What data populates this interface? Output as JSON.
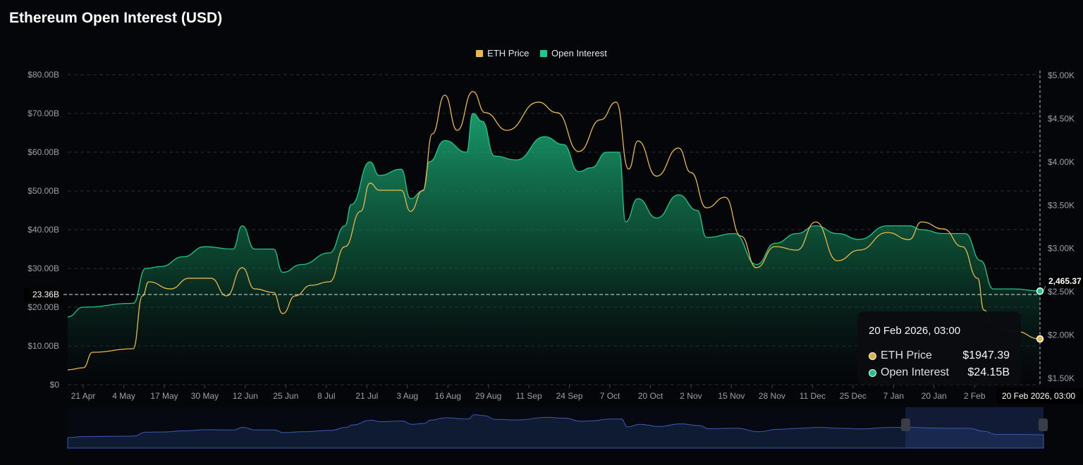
{
  "title": "Ethereum Open Interest (USD)",
  "colors": {
    "eth_price": "#e8b84a",
    "open_interest": "#1fc98a",
    "navigator": "#3b5bb0"
  },
  "tooltip": {
    "date": "20 Feb 2026, 03:00",
    "rows": [
      {
        "label": "ETH Price",
        "value": "$1947.39"
      },
      {
        "label": "Open Interest",
        "value": "$24.15B"
      }
    ]
  },
  "crosshair": {
    "left_label": "23.36B",
    "right_label": "2,465.37",
    "x_label": "20 Feb 2026, 03:00"
  },
  "chart_data": {
    "type": "area",
    "title": "Ethereum Open Interest (USD)",
    "legend": [
      "ETH Price",
      "Open Interest"
    ],
    "legend_position": "top-center",
    "x_unit": "days since 16 Apr 2025",
    "x_range": [
      0,
      312
    ],
    "x_ticks": [
      {
        "day": 5,
        "label": "21 Apr"
      },
      {
        "day": 18,
        "label": "4 May"
      },
      {
        "day": 31,
        "label": "17 May"
      },
      {
        "day": 44,
        "label": "30 May"
      },
      {
        "day": 57,
        "label": "12 Jun"
      },
      {
        "day": 70,
        "label": "25 Jun"
      },
      {
        "day": 83,
        "label": "8 Jul"
      },
      {
        "day": 96,
        "label": "21 Jul"
      },
      {
        "day": 109,
        "label": "3 Aug"
      },
      {
        "day": 122,
        "label": "16 Aug"
      },
      {
        "day": 135,
        "label": "29 Aug"
      },
      {
        "day": 148,
        "label": "11 Sep"
      },
      {
        "day": 161,
        "label": "24 Sep"
      },
      {
        "day": 174,
        "label": "7 Oct"
      },
      {
        "day": 187,
        "label": "20 Oct"
      },
      {
        "day": 200,
        "label": "2 Nov"
      },
      {
        "day": 213,
        "label": "15 Nov"
      },
      {
        "day": 226,
        "label": "28 Nov"
      },
      {
        "day": 239,
        "label": "11 Dec"
      },
      {
        "day": 252,
        "label": "25 Dec"
      },
      {
        "day": 265,
        "label": "7 Jan"
      },
      {
        "day": 278,
        "label": "20 Jan"
      },
      {
        "day": 291,
        "label": "2 Feb"
      }
    ],
    "y_left": {
      "label": "Open Interest",
      "range": [
        0,
        80
      ],
      "ticks": [
        "$0",
        "$10.00B",
        "$20.00B",
        "$30.00B",
        "$40.00B",
        "$50.00B",
        "$60.00B",
        "$70.00B",
        "$80.00B"
      ]
    },
    "y_right": {
      "label": "ETH Price",
      "range": [
        1500,
        5000
      ],
      "ticks": [
        "$1.50K",
        "$2.00K",
        "$2.50K",
        "$3.00K",
        "$3.50K",
        "$4.00K",
        "$4.50K",
        "$5.00K"
      ]
    },
    "series": [
      {
        "name": "Open Interest",
        "axis": "left",
        "unit": "B USD",
        "points": [
          [
            0,
            17.5
          ],
          [
            5,
            20
          ],
          [
            21,
            21
          ],
          [
            25,
            30
          ],
          [
            30,
            30.5
          ],
          [
            37,
            33
          ],
          [
            44,
            35.6
          ],
          [
            53,
            35
          ],
          [
            56,
            41
          ],
          [
            60,
            35
          ],
          [
            66,
            35
          ],
          [
            69,
            29
          ],
          [
            75,
            31
          ],
          [
            84,
            34
          ],
          [
            89,
            41
          ],
          [
            91,
            46.5
          ],
          [
            97,
            57.5
          ],
          [
            100,
            54
          ],
          [
            107,
            55.6
          ],
          [
            110,
            48
          ],
          [
            114,
            50
          ],
          [
            116,
            57.5
          ],
          [
            121,
            63
          ],
          [
            128,
            60
          ],
          [
            130,
            70
          ],
          [
            133,
            68
          ],
          [
            137,
            59
          ],
          [
            144,
            58
          ],
          [
            153,
            64
          ],
          [
            159,
            62
          ],
          [
            164,
            55
          ],
          [
            168,
            56
          ],
          [
            173,
            60
          ],
          [
            177,
            60
          ],
          [
            179,
            42
          ],
          [
            183,
            48
          ],
          [
            189,
            43
          ],
          [
            196,
            49
          ],
          [
            202,
            45
          ],
          [
            205,
            38
          ],
          [
            214,
            39
          ],
          [
            221,
            31
          ],
          [
            227,
            36.5
          ],
          [
            234,
            39
          ],
          [
            240,
            41
          ],
          [
            247,
            39
          ],
          [
            254,
            37.5
          ],
          [
            263,
            41
          ],
          [
            270,
            41
          ],
          [
            274,
            40
          ],
          [
            281,
            39
          ],
          [
            288,
            39
          ],
          [
            293,
            32
          ],
          [
            297,
            24.7
          ],
          [
            304,
            24.7
          ],
          [
            312,
            24.15
          ]
        ]
      },
      {
        "name": "ETH Price",
        "axis": "right",
        "unit": "USD",
        "points": [
          [
            0,
            1590
          ],
          [
            5,
            1614
          ],
          [
            8,
            1793
          ],
          [
            21,
            1834
          ],
          [
            24,
            2444
          ],
          [
            26,
            2607
          ],
          [
            33,
            2525
          ],
          [
            39,
            2648
          ],
          [
            46,
            2648
          ],
          [
            51,
            2444
          ],
          [
            56,
            2770
          ],
          [
            60,
            2525
          ],
          [
            66,
            2485
          ],
          [
            69,
            2240
          ],
          [
            73,
            2444
          ],
          [
            78,
            2566
          ],
          [
            84,
            2607
          ],
          [
            89,
            3014
          ],
          [
            94,
            3421
          ],
          [
            97,
            3747
          ],
          [
            100,
            3665
          ],
          [
            107,
            3665
          ],
          [
            110,
            3421
          ],
          [
            114,
            3665
          ],
          [
            117,
            4316
          ],
          [
            121,
            4764
          ],
          [
            125,
            4357
          ],
          [
            130,
            4805
          ],
          [
            134,
            4561
          ],
          [
            141,
            4357
          ],
          [
            151,
            4683
          ],
          [
            157,
            4561
          ],
          [
            164,
            4113
          ],
          [
            171,
            4479
          ],
          [
            176,
            4683
          ],
          [
            180,
            3909
          ],
          [
            183,
            4235
          ],
          [
            189,
            3828
          ],
          [
            196,
            4153
          ],
          [
            200,
            3869
          ],
          [
            205,
            3462
          ],
          [
            211,
            3584
          ],
          [
            216,
            3136
          ],
          [
            221,
            2770
          ],
          [
            227,
            3014
          ],
          [
            234,
            2973
          ],
          [
            240,
            3299
          ],
          [
            247,
            2851
          ],
          [
            254,
            2973
          ],
          [
            263,
            3177
          ],
          [
            270,
            3095
          ],
          [
            274,
            3299
          ],
          [
            281,
            3218
          ],
          [
            287,
            3014
          ],
          [
            292,
            2648
          ],
          [
            294,
            2281
          ],
          [
            297,
            2119
          ],
          [
            304,
            2037
          ],
          [
            312,
            1947.39
          ]
        ]
      }
    ]
  }
}
